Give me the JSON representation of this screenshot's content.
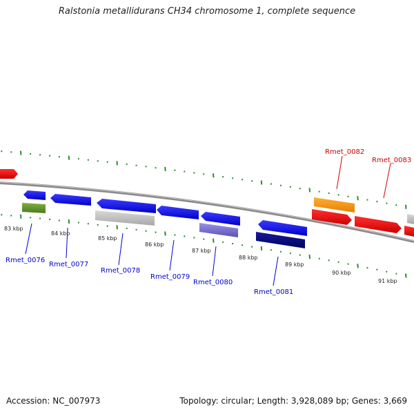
{
  "title": "Ralstonia metallidurans CH34 chromosome 1, complete sequence",
  "footer": {
    "accession": "Accession: NC_007973",
    "stats": "Topology: circular; Length: 3,928,089 bp; Genes: 3,669"
  },
  "colors": {
    "backbone": "#8a8a8a",
    "tick": "#2e8b2e",
    "label_blue": "#0000cc",
    "label_red": "#cc0000"
  },
  "ticks": [
    {
      "label": "83 kbp"
    },
    {
      "label": "84 kbp"
    },
    {
      "label": "85 kbp"
    },
    {
      "label": "86 kbp"
    },
    {
      "label": "87 kbp"
    },
    {
      "label": "88 kbp"
    },
    {
      "label": "89 kbp"
    },
    {
      "label": "90 kbp"
    },
    {
      "label": "91 kbp"
    }
  ],
  "genes": [
    {
      "label": "Rmet_0076",
      "color": "#0000ee"
    },
    {
      "label": "Rmet_0077",
      "color": "#0000ee"
    },
    {
      "label": "Rmet_0078",
      "color": "#0000ee"
    },
    {
      "label": "Rmet_0079",
      "color": "#0000ee"
    },
    {
      "label": "Rmet_0080",
      "color": "#0000ee"
    },
    {
      "label": "Rmet_0081",
      "color": "#0000ee"
    },
    {
      "label": "Rmet_0082",
      "color": "#ee0000"
    },
    {
      "label": "Rmet_0083",
      "color": "#ee0000"
    }
  ]
}
